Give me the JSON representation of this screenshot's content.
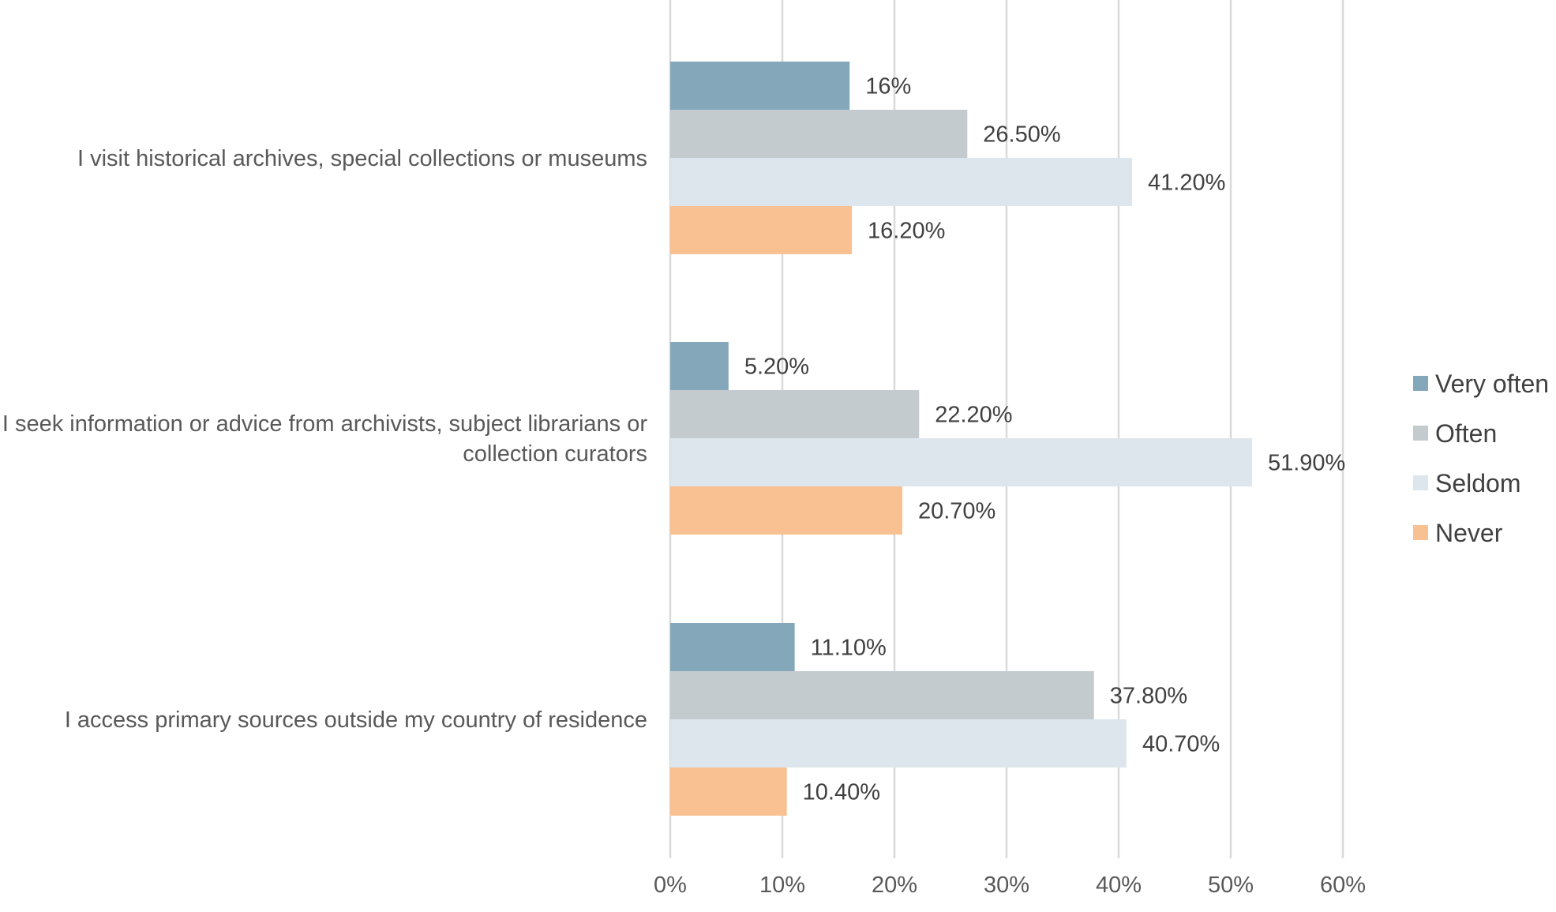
{
  "chart_data": {
    "type": "bar",
    "orientation": "horizontal",
    "title": "",
    "xlabel": "",
    "ylabel": "",
    "xlim": [
      0,
      60
    ],
    "x_ticks": [
      "0%",
      "10%",
      "20%",
      "30%",
      "40%",
      "50%",
      "60%"
    ],
    "grid": true,
    "legend_position": "right",
    "categories": [
      [
        "I visit historical archives, special collections or museums"
      ],
      [
        "I seek information or advice from archivists, subject librarians or",
        "collection curators"
      ],
      [
        "I access primary sources outside my country of residence"
      ]
    ],
    "series": [
      {
        "name": "Very often",
        "color": "#84a8b9",
        "values": [
          16,
          5.2,
          11.1
        ],
        "labels": [
          "16%",
          "5.20%",
          "11.10%"
        ]
      },
      {
        "name": "Often",
        "color": "#c4cbcf",
        "values": [
          26.5,
          22.2,
          37.8
        ],
        "labels": [
          "26.50%",
          "22.20%",
          "37.80%"
        ]
      },
      {
        "name": "Seldom",
        "color": "#dce6ec",
        "values": [
          41.2,
          51.9,
          40.7
        ],
        "labels": [
          "41.20%",
          "51.90%",
          "40.70%"
        ]
      },
      {
        "name": "Never",
        "color": "#f9c091",
        "values": [
          16.2,
          20.7,
          10.4
        ],
        "labels": [
          "16.20%",
          "20.70%",
          "10.40%"
        ]
      }
    ]
  }
}
